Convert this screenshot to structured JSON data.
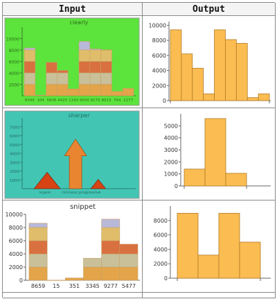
{
  "table": {
    "header_input": "Input",
    "header_output": "Output"
  },
  "colors": {
    "bar_fill": "#fbbc52",
    "bar_stroke": "#b07a26",
    "stack": [
      "#e3a44a",
      "#c9c09a",
      "#d9703f",
      "#e0bd6a",
      "#b8b8d8"
    ],
    "green_bg": "#5ce33c",
    "teal_bg": "#43c5b4",
    "arrow": "#e98531",
    "triangle": "#d74313"
  },
  "chart_data": [
    {
      "id": "input1",
      "type": "bar",
      "title": "clearly",
      "background": "green",
      "ylim": [
        0,
        12000
      ],
      "yticks": [
        2000,
        4000,
        6000,
        8000,
        10000
      ],
      "categories": [
        "8349",
        "104",
        "5836",
        "4425",
        "1193",
        "9500",
        "8175",
        "8013",
        "764",
        "1277"
      ],
      "values": [
        8349,
        104,
        5836,
        4425,
        1193,
        9500,
        8175,
        8013,
        764,
        1277
      ]
    },
    {
      "id": "output1",
      "type": "bar",
      "title": "",
      "ylim": [
        0,
        10500
      ],
      "yticks": [
        0,
        2000,
        4000,
        6000,
        8000,
        10000
      ],
      "values": [
        9400,
        6200,
        4300,
        900,
        9400,
        8100,
        7600,
        400,
        900
      ]
    },
    {
      "id": "input2",
      "type": "diagram-chart",
      "title": "sharper",
      "background": "teal",
      "ylim": [
        0,
        8000
      ],
      "yticks": [
        1000,
        2000,
        3000,
        4000,
        5000,
        6000,
        7000
      ],
      "x_labels": [
        "ingest",
        "richness progressive"
      ],
      "shapes": [
        {
          "kind": "triangle",
          "x": 0.22,
          "height": 1850
        },
        {
          "kind": "arrow",
          "x": 0.47,
          "height": 5600
        },
        {
          "kind": "triangle",
          "x": 0.67,
          "height": 1050
        }
      ]
    },
    {
      "id": "output2",
      "type": "bar",
      "title": "",
      "ylim": [
        0,
        6000
      ],
      "yticks": [
        0,
        1000,
        2000,
        3000,
        4000,
        5000
      ],
      "values": [
        1400,
        5600,
        1050
      ]
    },
    {
      "id": "input3",
      "type": "bar",
      "title": "snippet",
      "ylim": [
        0,
        10000
      ],
      "yticks": [
        0,
        2000,
        4000,
        6000,
        8000,
        10000
      ],
      "categories": [
        "8659",
        "15",
        "351",
        "3345",
        "9277",
        "5477"
      ],
      "values": [
        8659,
        15,
        351,
        3345,
        9277,
        5477
      ]
    },
    {
      "id": "output3",
      "type": "bar",
      "title": "",
      "ylim": [
        0,
        10000
      ],
      "yticks": [
        0,
        2000,
        4000,
        6000,
        8000
      ],
      "values": [
        9000,
        3200,
        9000,
        5000
      ]
    }
  ]
}
